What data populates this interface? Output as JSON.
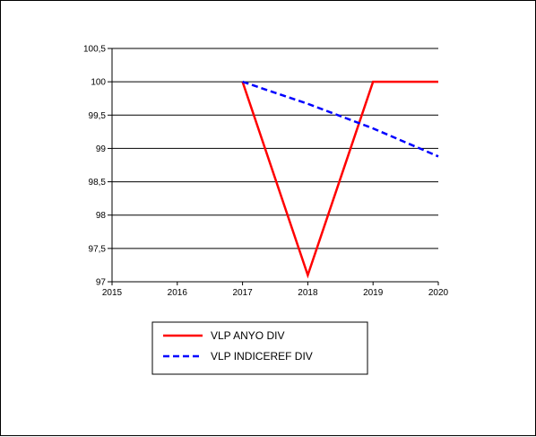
{
  "chart_data": {
    "type": "line",
    "title": "",
    "xlabel": "",
    "ylabel": "",
    "x": [
      2015,
      2016,
      2017,
      2018,
      2019,
      2020
    ],
    "x_tick_labels": [
      "2015",
      "2016",
      "2017",
      "2018",
      "2019",
      "2020"
    ],
    "y_tick_labels": [
      "97",
      "97,5",
      "98",
      "98,5",
      "99",
      "99,5",
      "100",
      "100,5"
    ],
    "y_ticks": [
      97,
      97.5,
      98,
      98.5,
      99,
      99.5,
      100,
      100.5
    ],
    "xlim": [
      2015,
      2020
    ],
    "ylim": [
      97,
      100.5
    ],
    "grid": "horizontal",
    "legend_position": "bottom",
    "series": [
      {
        "name": "VLP ANYO DIV",
        "color": "#ff0000",
        "style": "solid",
        "points": [
          [
            2017,
            100
          ],
          [
            2018,
            97.1
          ],
          [
            2019,
            100
          ],
          [
            2020,
            100
          ]
        ]
      },
      {
        "name": "VLP INDICEREF DIV",
        "color": "#0000ff",
        "style": "dashed",
        "points": [
          [
            2017,
            100
          ],
          [
            2018,
            99.67
          ],
          [
            2019,
            99.3
          ],
          [
            2020,
            98.88
          ]
        ]
      }
    ]
  }
}
